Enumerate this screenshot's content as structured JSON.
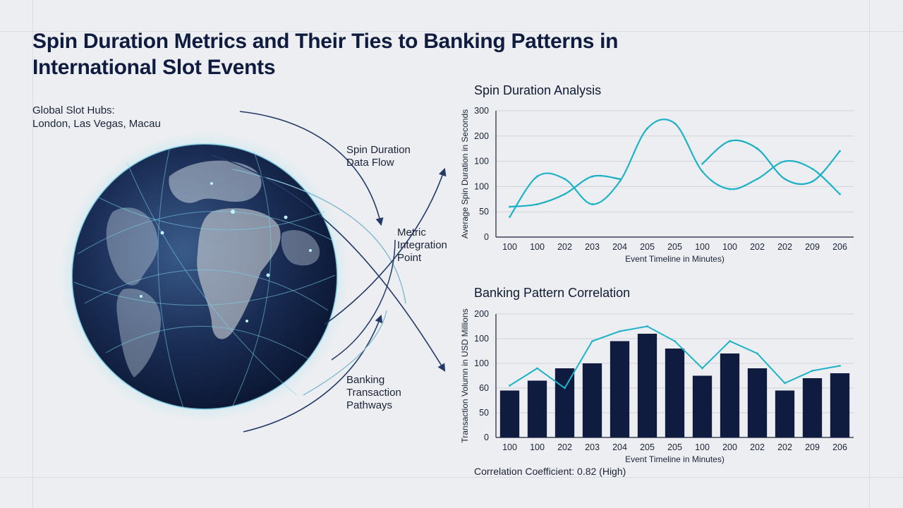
{
  "title": "Spin Duration Metrics and Their Ties to Banking Patterns in International Slot Events",
  "hubs": {
    "heading": "Global Slot Hubs:",
    "cities": "London, Las Vegas, Macau"
  },
  "flow_labels": {
    "spin_flow": [
      "Spin Duration",
      "Data Flow"
    ],
    "integration": [
      "Metric",
      "Integration",
      "Point"
    ],
    "banking": [
      "Banking",
      "Transaction",
      "Pathways"
    ]
  },
  "correlation_text": "Correlation Coefficient: 0.82 (High)",
  "colors": {
    "navy": "#0f1c3f",
    "teal": "#1fb3c8",
    "grid": "#cfd3da",
    "background": "#eceef1"
  },
  "chart_data": [
    {
      "type": "line",
      "title": "Spin Duration Analysis",
      "xlabel": "Event Timeline in Minutes)",
      "ylabel": "Average Spin Duration in Seconds",
      "categories": [
        "100",
        "100",
        "202",
        "203",
        "204",
        "205",
        "205",
        "100",
        "100",
        "202",
        "202",
        "209",
        "206"
      ],
      "y_tick_labels": [
        "0",
        "50",
        "100",
        "100",
        "200",
        "300"
      ],
      "ylim": [
        0,
        5
      ],
      "grid": true,
      "series": [
        {
          "values": [
            0.8,
            2.4,
            2.3,
            1.3,
            2.2,
            4.3,
            4.5,
            2.6,
            1.9,
            2.3,
            3.0,
            2.7,
            1.7
          ]
        },
        {
          "values": [
            1.2,
            1.3,
            1.7,
            2.4,
            2.3,
            null,
            null,
            2.9,
            3.8,
            3.5,
            2.3,
            2.2,
            3.4
          ]
        }
      ]
    },
    {
      "type": "bar",
      "title": "Banking Pattern Correlation",
      "xlabel": "Event Timeline in Minutes)",
      "ylabel": "Transaction Volumn in USD Millions",
      "categories": [
        "100",
        "100",
        "202",
        "203",
        "204",
        "205",
        "205",
        "100",
        "200",
        "202",
        "202",
        "209",
        "206"
      ],
      "y_tick_labels": [
        "0",
        "50",
        "60",
        "100",
        "100",
        "200"
      ],
      "ylim": [
        0,
        5
      ],
      "grid": true,
      "values": [
        1.9,
        2.3,
        2.8,
        3.0,
        3.9,
        4.2,
        3.6,
        2.5,
        3.4,
        2.8,
        1.9,
        2.4,
        2.6
      ],
      "line_values": [
        2.1,
        2.8,
        2.0,
        3.9,
        4.3,
        4.5,
        3.9,
        2.8,
        3.9,
        3.4,
        2.2,
        2.7,
        2.9
      ]
    }
  ]
}
